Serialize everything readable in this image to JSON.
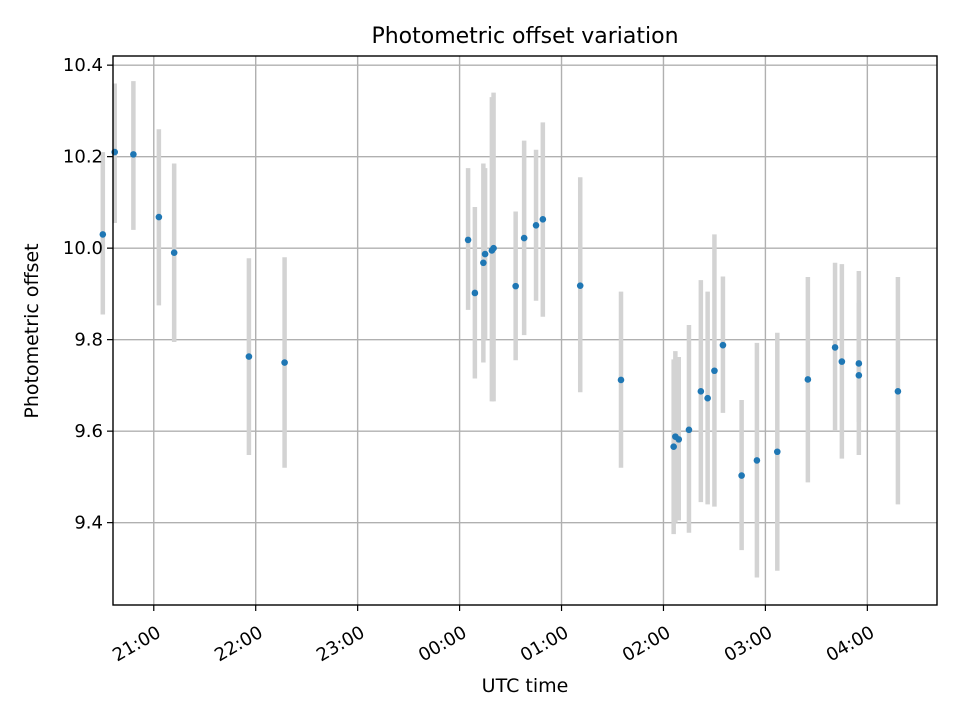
{
  "chart_data": {
    "type": "scatter",
    "title": "Photometric offset variation",
    "xlabel": "UTC time",
    "ylabel": "Photometric offset",
    "x_unit": "UTC time",
    "xlim": [
      "20:36",
      "04:41"
    ],
    "ylim": [
      9.22,
      10.42
    ],
    "x_ticks": [
      "21:00",
      "22:00",
      "23:00",
      "00:00",
      "01:00",
      "02:00",
      "03:00",
      "04:00"
    ],
    "y_ticks": [
      "9.4",
      "9.6",
      "9.8",
      "10.0",
      "10.2",
      "10.4"
    ],
    "grid": true,
    "point_color": "#1f77b4",
    "errorbar_color": "#d3d3d3",
    "points": [
      {
        "t": "20:30",
        "y": 10.03,
        "lo": 9.855,
        "hi": 10.21
      },
      {
        "t": "20:37",
        "y": 10.21,
        "lo": 10.055,
        "hi": 10.36
      },
      {
        "t": "20:48",
        "y": 10.205,
        "lo": 10.04,
        "hi": 10.365
      },
      {
        "t": "21:03",
        "y": 10.068,
        "lo": 9.875,
        "hi": 10.26
      },
      {
        "t": "21:12",
        "y": 9.99,
        "lo": 9.795,
        "hi": 10.185
      },
      {
        "t": "21:56",
        "y": 9.763,
        "lo": 9.548,
        "hi": 9.978
      },
      {
        "t": "22:17",
        "y": 9.75,
        "lo": 9.52,
        "hi": 9.98
      },
      {
        "t": "00:05",
        "y": 10.018,
        "lo": 9.865,
        "hi": 10.175
      },
      {
        "t": "00:09",
        "y": 9.902,
        "lo": 9.715,
        "hi": 10.09
      },
      {
        "t": "00:14",
        "y": 9.968,
        "lo": 9.75,
        "hi": 10.185
      },
      {
        "t": "00:15",
        "y": 9.987,
        "lo": 9.8,
        "hi": 10.175
      },
      {
        "t": "00:19",
        "y": 9.995,
        "lo": 9.665,
        "hi": 10.33
      },
      {
        "t": "00:20",
        "y": 10.0,
        "lo": 9.665,
        "hi": 10.34
      },
      {
        "t": "00:33",
        "y": 9.917,
        "lo": 9.755,
        "hi": 10.08
      },
      {
        "t": "00:38",
        "y": 10.022,
        "lo": 9.81,
        "hi": 10.235
      },
      {
        "t": "00:45",
        "y": 10.05,
        "lo": 9.885,
        "hi": 10.215
      },
      {
        "t": "00:49",
        "y": 10.063,
        "lo": 9.85,
        "hi": 10.275
      },
      {
        "t": "01:11",
        "y": 9.918,
        "lo": 9.685,
        "hi": 10.155
      },
      {
        "t": "01:35",
        "y": 9.712,
        "lo": 9.52,
        "hi": 9.905
      },
      {
        "t": "02:06",
        "y": 9.566,
        "lo": 9.375,
        "hi": 9.757
      },
      {
        "t": "02:07",
        "y": 9.588,
        "lo": 9.4,
        "hi": 9.775
      },
      {
        "t": "02:09",
        "y": 9.582,
        "lo": 9.405,
        "hi": 9.762
      },
      {
        "t": "02:15",
        "y": 9.603,
        "lo": 9.378,
        "hi": 9.832
      },
      {
        "t": "02:22",
        "y": 9.687,
        "lo": 9.445,
        "hi": 9.93
      },
      {
        "t": "02:26",
        "y": 9.672,
        "lo": 9.44,
        "hi": 9.905
      },
      {
        "t": "02:30",
        "y": 9.732,
        "lo": 9.435,
        "hi": 10.03
      },
      {
        "t": "02:35",
        "y": 9.788,
        "lo": 9.64,
        "hi": 9.938
      },
      {
        "t": "02:46",
        "y": 9.503,
        "lo": 9.34,
        "hi": 9.668
      },
      {
        "t": "02:55",
        "y": 9.536,
        "lo": 9.28,
        "hi": 9.793
      },
      {
        "t": "03:07",
        "y": 9.555,
        "lo": 9.295,
        "hi": 9.815
      },
      {
        "t": "03:25",
        "y": 9.713,
        "lo": 9.488,
        "hi": 9.937
      },
      {
        "t": "03:41",
        "y": 9.783,
        "lo": 9.6,
        "hi": 9.968
      },
      {
        "t": "03:45",
        "y": 9.752,
        "lo": 9.54,
        "hi": 9.965
      },
      {
        "t": "03:55",
        "y": 9.748,
        "lo": 9.548,
        "hi": 9.95
      },
      {
        "t": "03:55",
        "y": 9.722,
        "lo": 9.62,
        "hi": 9.88
      },
      {
        "t": "04:18",
        "y": 9.687,
        "lo": 9.44,
        "hi": 9.937
      }
    ]
  }
}
